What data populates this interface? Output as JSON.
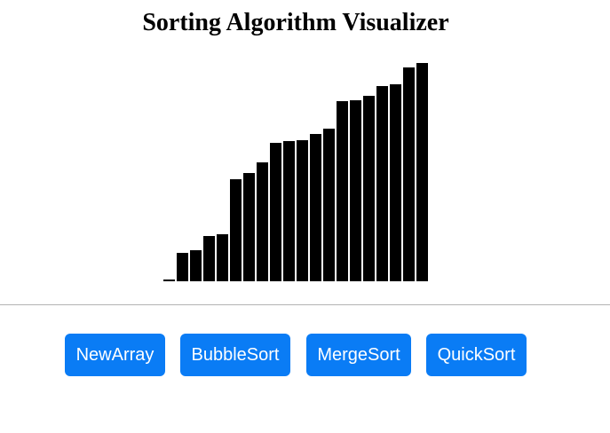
{
  "header": {
    "title": "Sorting Algorithm Visualizer"
  },
  "array_bars": {
    "color": "#000000",
    "values": [
      2,
      32,
      35,
      51,
      53,
      115,
      122,
      134,
      156,
      158,
      159,
      166,
      172,
      203,
      204,
      209,
      220,
      222,
      241,
      246
    ]
  },
  "controls": {
    "accent_color": "#0a7cf5",
    "text_color": "#ffffff",
    "buttons": [
      {
        "id": "new-array",
        "label": "NewArray"
      },
      {
        "id": "bubble-sort",
        "label": "BubbleSort"
      },
      {
        "id": "merge-sort",
        "label": "MergeSort"
      },
      {
        "id": "quick-sort",
        "label": "QuickSort"
      }
    ]
  }
}
